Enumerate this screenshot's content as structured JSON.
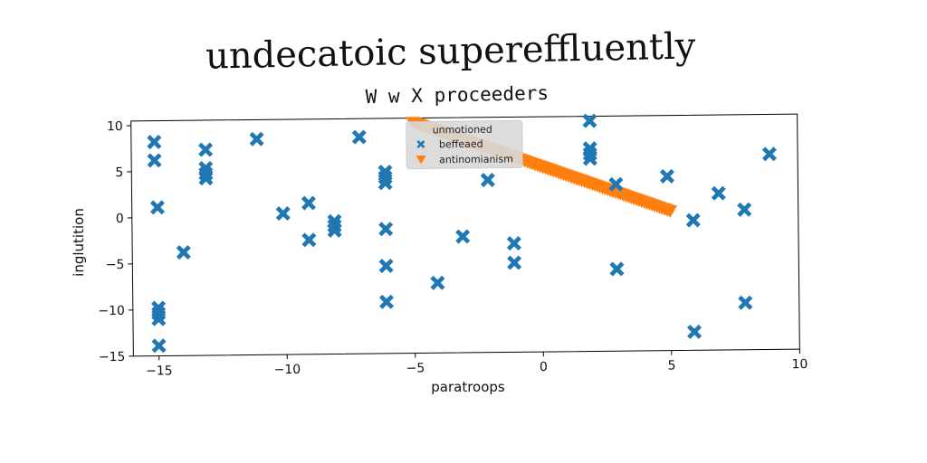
{
  "figure": {
    "suptitle": "undecatoic supereffluently"
  },
  "chart_data": {
    "type": "scatter",
    "title": "W w X proceeders",
    "xlabel": "paratroops",
    "ylabel": "inglutition",
    "xlim": [
      -16,
      10
    ],
    "ylim": [
      -15,
      10.5
    ],
    "xticks": [
      -15,
      -10,
      -5,
      0,
      5,
      10
    ],
    "yticks": [
      -15,
      -10,
      -5,
      0,
      5,
      10
    ],
    "grid": false,
    "legend": {
      "placement": "top-center",
      "title": "unmotioned",
      "entries": [
        "beffeaed",
        "antinomianism"
      ]
    },
    "series": [
      {
        "name": "beffeaed",
        "marker": "x",
        "color": "#1f77b4",
        "points": [
          [
            -15.1,
            8.2
          ],
          [
            -15.1,
            6.2
          ],
          [
            -15.0,
            1.1
          ],
          [
            -15.0,
            -9.8
          ],
          [
            -15.0,
            -10.4
          ],
          [
            -15.0,
            -11.0
          ],
          [
            -15.0,
            -13.9
          ],
          [
            -14.0,
            -3.8
          ],
          [
            -13.1,
            7.3
          ],
          [
            -13.1,
            5.3
          ],
          [
            -13.1,
            4.7
          ],
          [
            -13.1,
            4.2
          ],
          [
            -11.1,
            8.4
          ],
          [
            -10.1,
            0.3
          ],
          [
            -9.1,
            1.4
          ],
          [
            -9.1,
            -2.6
          ],
          [
            -8.1,
            -0.6
          ],
          [
            -8.1,
            -1.1
          ],
          [
            -8.1,
            -1.6
          ],
          [
            -7.1,
            8.5
          ],
          [
            -6.1,
            4.7
          ],
          [
            -6.1,
            4.1
          ],
          [
            -6.1,
            3.5
          ],
          [
            -6.1,
            -1.5
          ],
          [
            -6.1,
            -5.5
          ],
          [
            -6.1,
            -9.4
          ],
          [
            -4.1,
            -7.4
          ],
          [
            -3.1,
            -2.4
          ],
          [
            -2.1,
            3.7
          ],
          [
            -1.1,
            -3.2
          ],
          [
            -1.1,
            -5.3
          ],
          [
            1.9,
            10.0
          ],
          [
            1.9,
            7.0
          ],
          [
            1.9,
            6.4
          ],
          [
            1.9,
            5.9
          ],
          [
            2.9,
            3.1
          ],
          [
            2.9,
            -6.1
          ],
          [
            4.9,
            3.9
          ],
          [
            5.9,
            -0.9
          ],
          [
            5.9,
            -13.0
          ],
          [
            6.9,
            2.0
          ],
          [
            7.9,
            0.2
          ],
          [
            7.9,
            -9.9
          ],
          [
            8.9,
            6.2
          ]
        ]
      },
      {
        "name": "antinomianism",
        "marker": "triangle_down",
        "color": "#ff7f0e",
        "x_start": -5.0,
        "x_end": 5.0,
        "y_start": 10.0,
        "y_end": 0.1,
        "n_points": 100
      }
    ]
  }
}
